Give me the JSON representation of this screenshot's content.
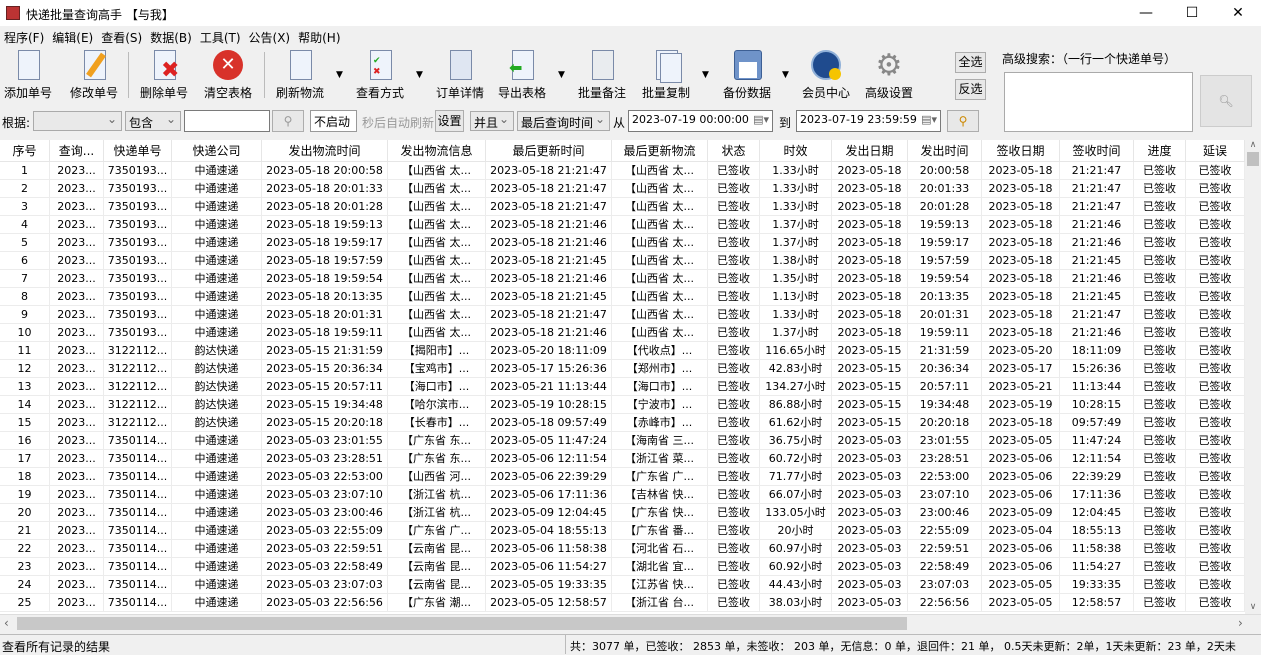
{
  "window": {
    "title": "快递批量查询高手 【与我】"
  },
  "menu": [
    "程序(F)",
    "编辑(E)",
    "查看(S)",
    "数据(B)",
    "工具(T)",
    "公告(X)",
    "帮助(H)"
  ],
  "toolbar": {
    "add": "添加单号",
    "edit": "修改单号",
    "delete": "删除单号",
    "clear": "清空表格",
    "refresh": "刷新物流",
    "view": "查看方式",
    "detail": "订单详情",
    "export": "导出表格",
    "remark": "批量备注",
    "copy": "批量复制",
    "backup": "备份数据",
    "member": "会员中心",
    "settings": "高级设置",
    "select_all": "全选",
    "invert": "反选"
  },
  "advanced_search": {
    "label": "高级搜索：（一行一个快递单号）",
    "value": ""
  },
  "filter": {
    "by_label": "根据:",
    "by_value": "",
    "match": "包含",
    "keyword": "",
    "auto_refresh": "不启动",
    "auto_refresh_label": "秒后自动刷新",
    "set": "设置",
    "logic": "并且",
    "time_field": "最后查询时间",
    "from_label": "从",
    "from": "2023-07-19 00:00:00",
    "to_label": "到",
    "to": "2023-07-19 23:59:59"
  },
  "table": {
    "columns": [
      "序号",
      "查询...",
      "快递单号",
      "快递公司",
      "发出物流时间",
      "发出物流信息",
      "最后更新时间",
      "最后更新物流",
      "状态",
      "时效",
      "发出日期",
      "发出时间",
      "签收日期",
      "签收时间",
      "进度",
      "延误"
    ],
    "rows": [
      [
        "1",
        "2023...",
        "7350193...",
        "中通速递",
        "2023-05-18 20:00:58",
        "【山西省 太...",
        "2023-05-18 21:21:47",
        "【山西省 太...",
        "已签收",
        "1.33小时",
        "2023-05-18",
        "20:00:58",
        "2023-05-18",
        "21:21:47",
        "已签收",
        "已签收"
      ],
      [
        "2",
        "2023...",
        "7350193...",
        "中通速递",
        "2023-05-18 20:01:33",
        "【山西省 太...",
        "2023-05-18 21:21:47",
        "【山西省 太...",
        "已签收",
        "1.33小时",
        "2023-05-18",
        "20:01:33",
        "2023-05-18",
        "21:21:47",
        "已签收",
        "已签收"
      ],
      [
        "3",
        "2023...",
        "7350193...",
        "中通速递",
        "2023-05-18 20:01:28",
        "【山西省 太...",
        "2023-05-18 21:21:47",
        "【山西省 太...",
        "已签收",
        "1.33小时",
        "2023-05-18",
        "20:01:28",
        "2023-05-18",
        "21:21:47",
        "已签收",
        "已签收"
      ],
      [
        "4",
        "2023...",
        "7350193...",
        "中通速递",
        "2023-05-18 19:59:13",
        "【山西省 太...",
        "2023-05-18 21:21:46",
        "【山西省 太...",
        "已签收",
        "1.37小时",
        "2023-05-18",
        "19:59:13",
        "2023-05-18",
        "21:21:46",
        "已签收",
        "已签收"
      ],
      [
        "5",
        "2023...",
        "7350193...",
        "中通速递",
        "2023-05-18 19:59:17",
        "【山西省 太...",
        "2023-05-18 21:21:46",
        "【山西省 太...",
        "已签收",
        "1.37小时",
        "2023-05-18",
        "19:59:17",
        "2023-05-18",
        "21:21:46",
        "已签收",
        "已签收"
      ],
      [
        "6",
        "2023...",
        "7350193...",
        "中通速递",
        "2023-05-18 19:57:59",
        "【山西省 太...",
        "2023-05-18 21:21:45",
        "【山西省 太...",
        "已签收",
        "1.38小时",
        "2023-05-18",
        "19:57:59",
        "2023-05-18",
        "21:21:45",
        "已签收",
        "已签收"
      ],
      [
        "7",
        "2023...",
        "7350193...",
        "中通速递",
        "2023-05-18 19:59:54",
        "【山西省 太...",
        "2023-05-18 21:21:46",
        "【山西省 太...",
        "已签收",
        "1.35小时",
        "2023-05-18",
        "19:59:54",
        "2023-05-18",
        "21:21:46",
        "已签收",
        "已签收"
      ],
      [
        "8",
        "2023...",
        "7350193...",
        "中通速递",
        "2023-05-18 20:13:35",
        "【山西省 太...",
        "2023-05-18 21:21:45",
        "【山西省 太...",
        "已签收",
        "1.13小时",
        "2023-05-18",
        "20:13:35",
        "2023-05-18",
        "21:21:45",
        "已签收",
        "已签收"
      ],
      [
        "9",
        "2023...",
        "7350193...",
        "中通速递",
        "2023-05-18 20:01:31",
        "【山西省 太...",
        "2023-05-18 21:21:47",
        "【山西省 太...",
        "已签收",
        "1.33小时",
        "2023-05-18",
        "20:01:31",
        "2023-05-18",
        "21:21:47",
        "已签收",
        "已签收"
      ],
      [
        "10",
        "2023...",
        "7350193...",
        "中通速递",
        "2023-05-18 19:59:11",
        "【山西省 太...",
        "2023-05-18 21:21:46",
        "【山西省 太...",
        "已签收",
        "1.37小时",
        "2023-05-18",
        "19:59:11",
        "2023-05-18",
        "21:21:46",
        "已签收",
        "已签收"
      ],
      [
        "11",
        "2023...",
        "3122112...",
        "韵达快递",
        "2023-05-15 21:31:59",
        "【揭阳市】...",
        "2023-05-20 18:11:09",
        "【代收点】...",
        "已签收",
        "116.65小时",
        "2023-05-15",
        "21:31:59",
        "2023-05-20",
        "18:11:09",
        "已签收",
        "已签收"
      ],
      [
        "12",
        "2023...",
        "3122112...",
        "韵达快递",
        "2023-05-15 20:36:34",
        "【宝鸡市】...",
        "2023-05-17 15:26:36",
        "【郑州市】...",
        "已签收",
        "42.83小时",
        "2023-05-15",
        "20:36:34",
        "2023-05-17",
        "15:26:36",
        "已签收",
        "已签收"
      ],
      [
        "13",
        "2023...",
        "3122112...",
        "韵达快递",
        "2023-05-15 20:57:11",
        "【海口市】...",
        "2023-05-21 11:13:44",
        "【海口市】...",
        "已签收",
        "134.27小时",
        "2023-05-15",
        "20:57:11",
        "2023-05-21",
        "11:13:44",
        "已签收",
        "已签收"
      ],
      [
        "14",
        "2023...",
        "3122112...",
        "韵达快递",
        "2023-05-15 19:34:48",
        "【哈尔滨市...",
        "2023-05-19 10:28:15",
        "【宁波市】...",
        "已签收",
        "86.88小时",
        "2023-05-15",
        "19:34:48",
        "2023-05-19",
        "10:28:15",
        "已签收",
        "已签收"
      ],
      [
        "15",
        "2023...",
        "3122112...",
        "韵达快递",
        "2023-05-15 20:20:18",
        "【长春市】...",
        "2023-05-18 09:57:49",
        "【赤峰市】...",
        "已签收",
        "61.62小时",
        "2023-05-15",
        "20:20:18",
        "2023-05-18",
        "09:57:49",
        "已签收",
        "已签收"
      ],
      [
        "16",
        "2023...",
        "7350114...",
        "中通速递",
        "2023-05-03 23:01:55",
        "【广东省 东...",
        "2023-05-05 11:47:24",
        "【海南省 三...",
        "已签收",
        "36.75小时",
        "2023-05-03",
        "23:01:55",
        "2023-05-05",
        "11:47:24",
        "已签收",
        "已签收"
      ],
      [
        "17",
        "2023...",
        "7350114...",
        "中通速递",
        "2023-05-03 23:28:51",
        "【广东省 东...",
        "2023-05-06 12:11:54",
        "【浙江省 菜...",
        "已签收",
        "60.72小时",
        "2023-05-03",
        "23:28:51",
        "2023-05-06",
        "12:11:54",
        "已签收",
        "已签收"
      ],
      [
        "18",
        "2023...",
        "7350114...",
        "中通速递",
        "2023-05-03 22:53:00",
        "【山西省 河...",
        "2023-05-06 22:39:29",
        "【广东省 广...",
        "已签收",
        "71.77小时",
        "2023-05-03",
        "22:53:00",
        "2023-05-06",
        "22:39:29",
        "已签收",
        "已签收"
      ],
      [
        "19",
        "2023...",
        "7350114...",
        "中通速递",
        "2023-05-03 23:07:10",
        "【浙江省 杭...",
        "2023-05-06 17:11:36",
        "【吉林省 快...",
        "已签收",
        "66.07小时",
        "2023-05-03",
        "23:07:10",
        "2023-05-06",
        "17:11:36",
        "已签收",
        "已签收"
      ],
      [
        "20",
        "2023...",
        "7350114...",
        "中通速递",
        "2023-05-03 23:00:46",
        "【浙江省 杭...",
        "2023-05-09 12:04:45",
        "【广东省 快...",
        "已签收",
        "133.05小时",
        "2023-05-03",
        "23:00:46",
        "2023-05-09",
        "12:04:45",
        "已签收",
        "已签收"
      ],
      [
        "21",
        "2023...",
        "7350114...",
        "中通速递",
        "2023-05-03 22:55:09",
        "【广东省 广...",
        "2023-05-04 18:55:13",
        "【广东省 番...",
        "已签收",
        "20小时",
        "2023-05-03",
        "22:55:09",
        "2023-05-04",
        "18:55:13",
        "已签收",
        "已签收"
      ],
      [
        "22",
        "2023...",
        "7350114...",
        "中通速递",
        "2023-05-03 22:59:51",
        "【云南省 昆...",
        "2023-05-06 11:58:38",
        "【河北省 石...",
        "已签收",
        "60.97小时",
        "2023-05-03",
        "22:59:51",
        "2023-05-06",
        "11:58:38",
        "已签收",
        "已签收"
      ],
      [
        "23",
        "2023...",
        "7350114...",
        "中通速递",
        "2023-05-03 22:58:49",
        "【云南省 昆...",
        "2023-05-06 11:54:27",
        "【湖北省 宜...",
        "已签收",
        "60.92小时",
        "2023-05-03",
        "22:58:49",
        "2023-05-06",
        "11:54:27",
        "已签收",
        "已签收"
      ],
      [
        "24",
        "2023...",
        "7350114...",
        "中通速递",
        "2023-05-03 23:07:03",
        "【云南省 昆...",
        "2023-05-05 19:33:35",
        "【江苏省 快...",
        "已签收",
        "44.43小时",
        "2023-05-03",
        "23:07:03",
        "2023-05-05",
        "19:33:35",
        "已签收",
        "已签收"
      ],
      [
        "25",
        "2023...",
        "7350114...",
        "中通速递",
        "2023-05-03 22:56:56",
        "【广东省 潮...",
        "2023-05-05 12:58:57",
        "【浙江省 台...",
        "已签收",
        "38.03小时",
        "2023-05-03",
        "22:56:56",
        "2023-05-05",
        "12:58:57",
        "已签收",
        "已签收"
      ]
    ]
  },
  "status": {
    "left": "查看所有记录的结果",
    "right": "共：3077 单，已签收： 2853 单，未签收： 203 单，无信息：0 单，退回件：21 单， 0.5天未更新：2单，1天未更新：23 单，2天未"
  }
}
